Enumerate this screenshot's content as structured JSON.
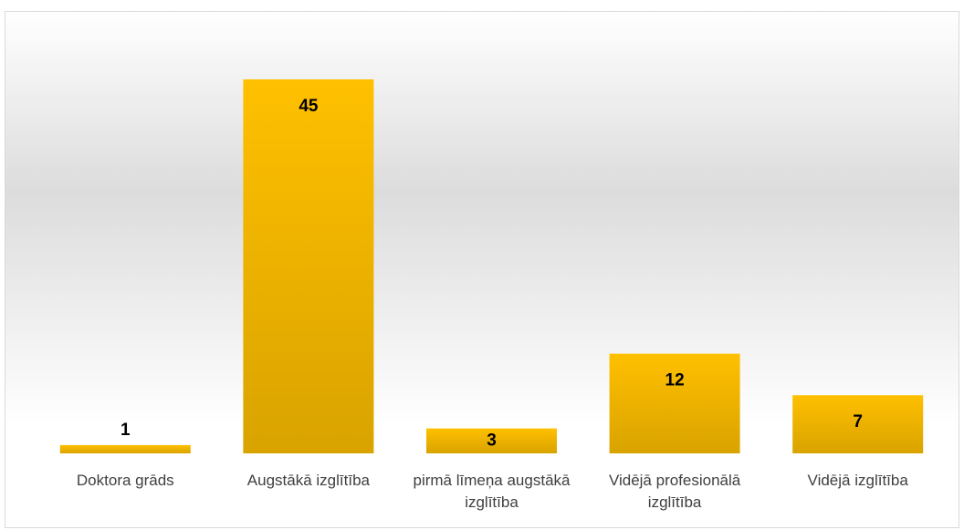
{
  "chart_data": {
    "type": "bar",
    "categories": [
      "Doktora grāds",
      "Augstākā izglītība",
      "pirmā līmeņa augstākā izglītība",
      "Vidējā profesionālā izglītība",
      "Vidējā izglītība"
    ],
    "values": [
      1,
      45,
      3,
      12,
      7
    ],
    "color": "#ffc000"
  }
}
